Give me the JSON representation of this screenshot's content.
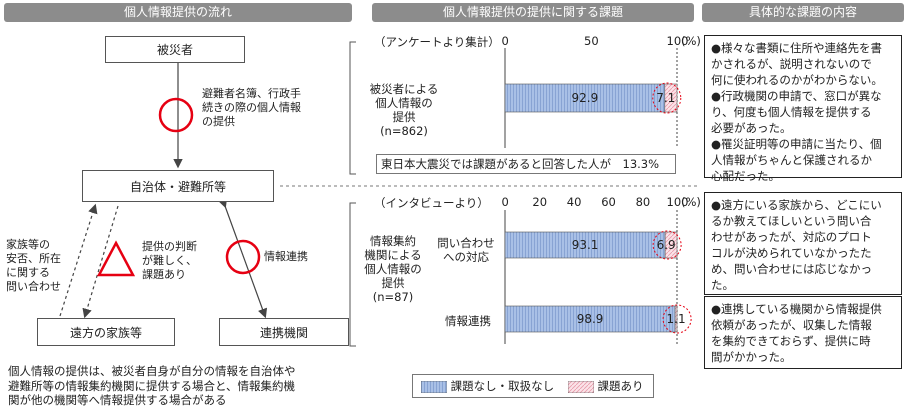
{
  "headers": {
    "flow": "個人情報提供の流れ",
    "issues": "個人情報提供の提供に関する課題",
    "details": "具体的な課題の内容"
  },
  "flow": {
    "victim": "被災者",
    "municipality": "自治体・避難所等",
    "family": "遠方の家族等",
    "partner": "連携機関",
    "label_top": [
      "避難者名簿、行政手",
      "続きの際の個人情報",
      "の提供"
    ],
    "label_left": [
      "家族等の",
      "安否、所在",
      "に関する",
      "問い合わせ"
    ],
    "label_judge": [
      "提供の判断",
      "が難しく、",
      "課題あり"
    ],
    "label_link": "情報連携",
    "footnote": [
      "個人情報の提供は、被災者自身が自分の情報を自治体や",
      "避難所等の情報集約機関に提供する場合と、情報集約機",
      "関が他の機関等へ情報提供する場合がある"
    ]
  },
  "survey": {
    "source": "（アンケートより集計）",
    "ticks": [
      "0",
      "50",
      "100"
    ],
    "unit": "(%)",
    "group_label": [
      "被災者による",
      "個人情報の",
      "提供",
      "(n=862)"
    ],
    "note": "東日本大震災では課題があると回答した人が　13.3%"
  },
  "interview": {
    "source": "（インタビューより）",
    "ticks": [
      "0",
      "20",
      "40",
      "60",
      "80",
      "100"
    ],
    "unit": "(%)",
    "group_label": [
      "情報集約",
      "機関による",
      "個人情報の",
      "提供",
      "(n=87)"
    ],
    "row1_label": [
      "問い合わせ",
      "への対応"
    ],
    "row2_label": "情報連携"
  },
  "legend": {
    "no_issue": "課題なし・取扱なし",
    "issue": "課題あり"
  },
  "details": {
    "panel1": [
      "●様々な書類に住所や連絡先を書",
      "かされるが、説明されないので",
      "何に使われるのかがわからない。",
      "●行政機関の申請で、窓口が異な",
      "り、何度も個人情報を提供する",
      "必要があった。",
      "●罹災証明等の申請に当たり、個",
      "人情報がちゃんと保護されるか",
      "心配だった。"
    ],
    "panel2": [
      "●遠方にいる家族から、どこにい",
      "るか教えてほしいという問い合",
      "わせがあったが、対応のプロト",
      "コルが決められていなかったた",
      "め、問い合わせには応じなかっ",
      "た。"
    ],
    "panel3": [
      "●連携している機関から情報提供",
      "依頼があったが、収集した情報",
      "を集約できておらず、提供に時",
      "間がかかった。"
    ]
  },
  "chart_data": [
    {
      "type": "bar",
      "orientation": "horizontal",
      "stacked": true,
      "categories": [
        "被災者による個人情報の提供(n=862)"
      ],
      "series": [
        {
          "name": "課題なし・取扱なし",
          "values": [
            92.9
          ]
        },
        {
          "name": "課題あり",
          "values": [
            7.1
          ]
        }
      ],
      "xlim": [
        0,
        100
      ],
      "xticks": [
        0,
        50,
        100
      ],
      "unit": "(%)"
    },
    {
      "type": "bar",
      "orientation": "horizontal",
      "stacked": true,
      "categories": [
        "問い合わせへの対応",
        "情報連携"
      ],
      "series": [
        {
          "name": "課題なし・取扱なし",
          "values": [
            93.1,
            98.9
          ]
        },
        {
          "name": "課題あり",
          "values": [
            6.9,
            1.1
          ]
        }
      ],
      "xlim": [
        0,
        100
      ],
      "xticks": [
        0,
        20,
        40,
        60,
        80,
        100
      ],
      "unit": "(%)"
    }
  ],
  "colors": {
    "header_bg": "#8c8c8c",
    "bar_blue": "#a9c0e6",
    "bar_pink": "#f2b8c4",
    "red_mark": "#e60012"
  }
}
